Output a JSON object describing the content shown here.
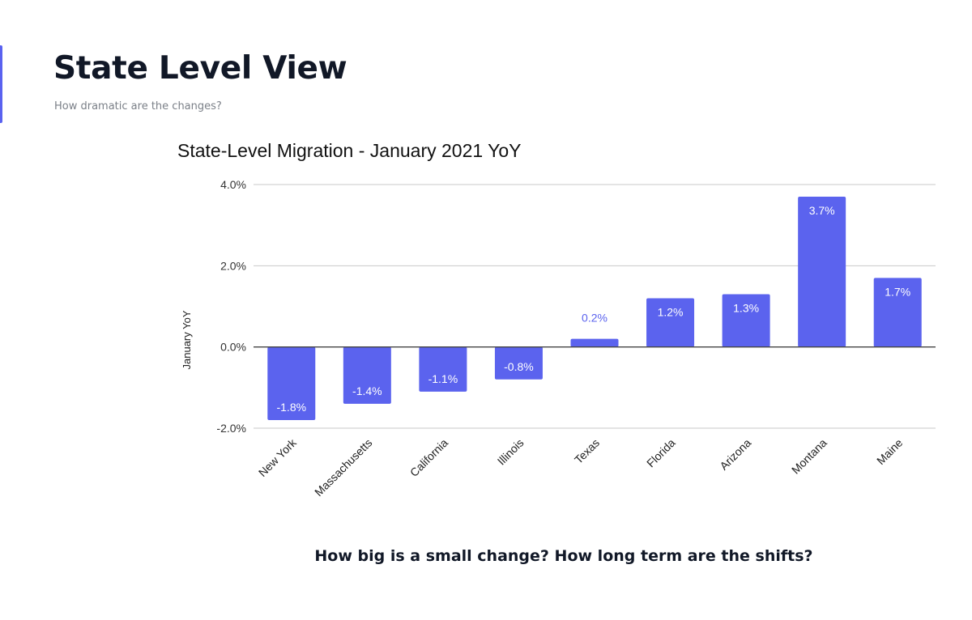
{
  "slide": {
    "title": "State Level View",
    "subtitle": "How dramatic are the changes?",
    "footer_question": "How big is a small change? How long term are the shifts?",
    "accent_color": "#5a62f0"
  },
  "chart_data": {
    "type": "bar",
    "title": "State-Level Migration - January 2021 YoY",
    "xlabel": "",
    "ylabel": "January YoY",
    "categories": [
      "New York",
      "Massachusetts",
      "California",
      "Illinois",
      "Texas",
      "Florida",
      "Arizona",
      "Montana",
      "Maine"
    ],
    "values": [
      -1.8,
      -1.4,
      -1.1,
      -0.8,
      0.2,
      1.2,
      1.3,
      3.7,
      1.7
    ],
    "data_labels": [
      "-1.8%",
      "-1.4%",
      "-1.1%",
      "-0.8%",
      "0.2%",
      "1.2%",
      "1.3%",
      "3.7%",
      "1.7%"
    ],
    "ylim": [
      -2.0,
      4.0
    ],
    "yticks": [
      -2.0,
      0.0,
      2.0,
      4.0
    ],
    "ytick_labels": [
      "-2.0%",
      "0.0%",
      "2.0%",
      "4.0%"
    ],
    "bar_color": "#5b63ee",
    "grid": true,
    "legend": "none"
  }
}
